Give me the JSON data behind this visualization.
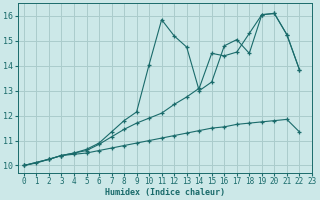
{
  "xlabel": "Humidex (Indice chaleur)",
  "bg_color": "#cce8e8",
  "grid_color": "#aacccc",
  "line_color": "#1a6b6b",
  "xlim": [
    -0.5,
    22.5
  ],
  "ylim": [
    9.7,
    16.5
  ],
  "xticks": [
    0,
    1,
    2,
    3,
    4,
    5,
    6,
    7,
    8,
    9,
    10,
    11,
    12,
    13,
    14,
    15,
    16,
    17,
    18,
    19,
    20,
    21,
    22,
    23
  ],
  "yticks": [
    10,
    11,
    12,
    13,
    14,
    15,
    16
  ],
  "series": [
    {
      "x": [
        0,
        1,
        2,
        3,
        4,
        5,
        6,
        7,
        8,
        9,
        10,
        11,
        12,
        13,
        14,
        15,
        16,
        17,
        18,
        19,
        20,
        21,
        22
      ],
      "y": [
        10.0,
        10.1,
        10.25,
        10.4,
        10.45,
        10.5,
        10.6,
        10.7,
        10.8,
        10.9,
        11.0,
        11.1,
        11.2,
        11.3,
        11.4,
        11.5,
        11.55,
        11.65,
        11.7,
        11.75,
        11.8,
        11.85,
        11.35
      ]
    },
    {
      "x": [
        0,
        2,
        3,
        4,
        5,
        6,
        7,
        8,
        9,
        10,
        11,
        12,
        13,
        14,
        15,
        16,
        17,
        18,
        19,
        20,
        21,
        22
      ],
      "y": [
        10.0,
        10.25,
        10.4,
        10.5,
        10.6,
        10.85,
        11.15,
        11.45,
        11.7,
        11.9,
        12.1,
        12.45,
        12.75,
        13.1,
        14.5,
        14.4,
        14.55,
        15.3,
        16.05,
        16.1,
        15.25,
        13.85
      ]
    },
    {
      "x": [
        0,
        2,
        3,
        4,
        5,
        6,
        7,
        8,
        9,
        10,
        11,
        12,
        13,
        14,
        15,
        16,
        17,
        18,
        19,
        20,
        21,
        22
      ],
      "y": [
        10.0,
        10.25,
        10.4,
        10.5,
        10.65,
        10.9,
        11.35,
        11.8,
        12.15,
        14.05,
        15.85,
        15.2,
        14.75,
        13.0,
        13.35,
        14.8,
        15.05,
        14.5,
        16.05,
        16.1,
        15.25,
        13.85
      ]
    }
  ]
}
